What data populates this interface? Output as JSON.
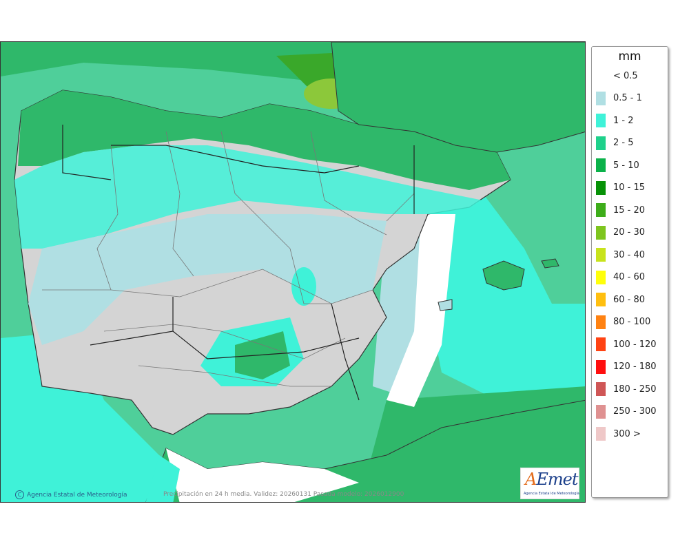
{
  "legend": {
    "title": "mm",
    "items": [
      {
        "label": "< 0.5",
        "color": "#ffffff"
      },
      {
        "label": "0.5 - 1",
        "color": "#b0dfe3"
      },
      {
        "label": "1 - 2",
        "color": "#3ff2d8"
      },
      {
        "label": "2 - 5",
        "color": "#1ed18b"
      },
      {
        "label": "5 - 10",
        "color": "#0bb24a"
      },
      {
        "label": "10 - 15",
        "color": "#079207"
      },
      {
        "label": "15 - 20",
        "color": "#3ead1a"
      },
      {
        "label": "20 - 30",
        "color": "#7ec51e"
      },
      {
        "label": "30 - 40",
        "color": "#c8e31c"
      },
      {
        "label": "40 - 60",
        "color": "#ffff0a"
      },
      {
        "label": "60 - 80",
        "color": "#ffbf10"
      },
      {
        "label": "80 - 100",
        "color": "#ff8212"
      },
      {
        "label": "100 - 120",
        "color": "#ff4313"
      },
      {
        "label": "120 - 180",
        "color": "#ff0f0f"
      },
      {
        "label": "180 - 250",
        "color": "#cf5656"
      },
      {
        "label": "250 - 300",
        "color": "#df9191"
      },
      {
        "label": "300 >",
        "color": "#efc8c8"
      }
    ]
  },
  "credit": "Agencia Estatal de Meteorología",
  "credit_symbol": "C",
  "caption": "Precipitación en 24 h media. Validez: 20260131 Pasada modelo: 2026012900",
  "logo": {
    "wordmark_a": "A",
    "wordmark_rest": "Emet",
    "subtitle": "Agencia Estatal de Meteorología"
  },
  "colors": {
    "sea": "#4fcf9a",
    "land": "#d4d4d4",
    "light_rain": "#b0dfe3",
    "rain_1_2": "#3ff2d8",
    "rain_5_10": "#0bb24a",
    "rain_20_30": "#7ec51e",
    "border": "#333333",
    "admin_border": "#777777"
  }
}
